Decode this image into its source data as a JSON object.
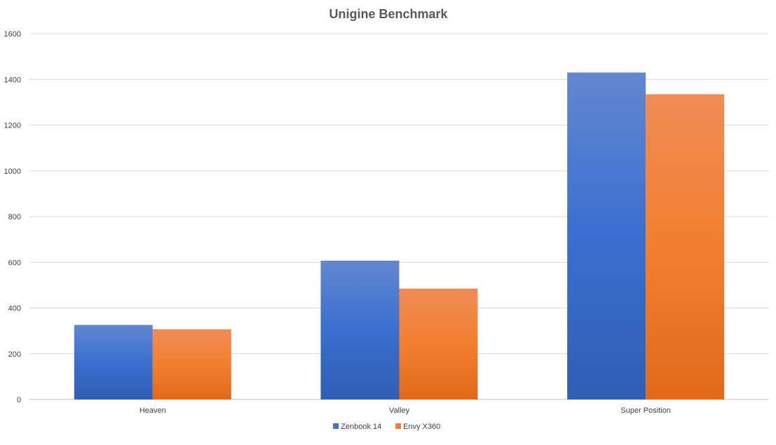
{
  "chart_data": {
    "type": "bar",
    "title": "Unigine Benchmark",
    "xlabel": "",
    "ylabel": "",
    "categories": [
      "Heaven",
      "Valley",
      "Super Position"
    ],
    "series": [
      {
        "name": "Zenbook 14",
        "color": "#4472c4",
        "values": [
          326,
          607,
          1430
        ]
      },
      {
        "name": "Envy X360",
        "color": "#ed7d31",
        "values": [
          307,
          485,
          1335
        ]
      }
    ],
    "ylim": [
      0,
      1600
    ],
    "yticks": [
      0,
      200,
      400,
      600,
      800,
      1000,
      1200,
      1400,
      1600
    ],
    "grid": true,
    "legend_position": "bottom"
  }
}
